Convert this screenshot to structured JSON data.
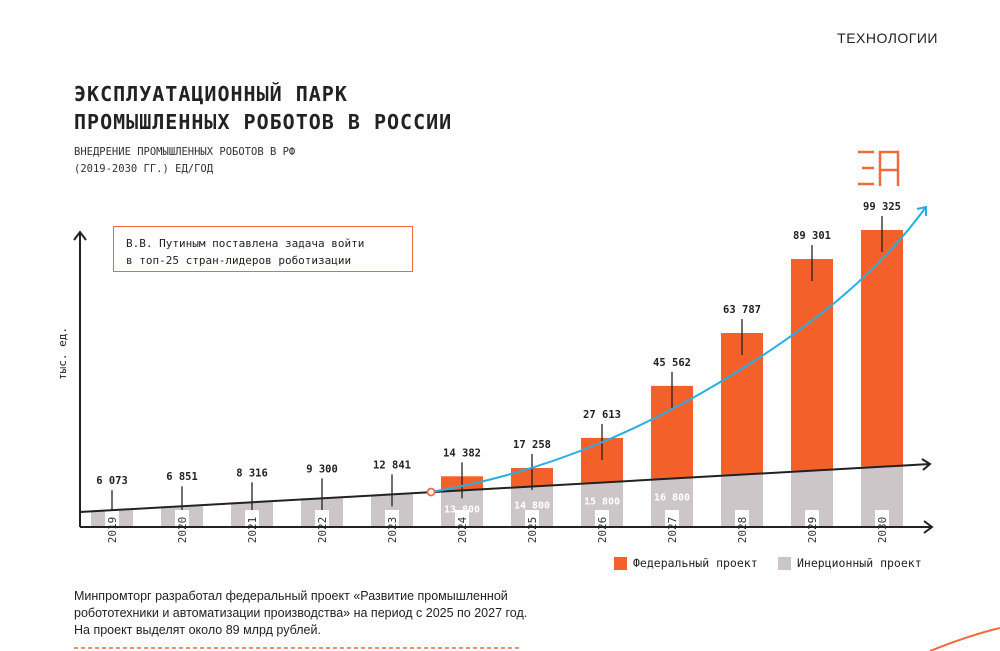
{
  "section_label": "ТЕХНОЛОГИИ",
  "title_lines": [
    "ЭКСПЛУАТАЦИОННЫЙ ПАРК",
    "ПРОМЫШЛЕННЫХ РОБОТОВ В РОССИИ"
  ],
  "subtitle_lines": [
    "ВНЕДРЕНИЕ ПРОМЫШЛЕННЫХ РОБОТОВ В РФ",
    "(2019-2030 ГГ.) ЕД/ГОД"
  ],
  "note_lines": [
    "В.В. Путиным поставлена задача войти",
    "в топ-25 стран-лидеров роботизации"
  ],
  "footer_text": "Минпромторг разработал федеральный проект «Развитие промышленной робототехники и автоматизации производства» на период с 2025 по 2027 год. На проект выделят около 89 млрд рублей.",
  "colors": {
    "federal": "#f4602a",
    "inertial": "#cdc6c8",
    "trend": "#29aee4",
    "accent": "#f26a3c"
  },
  "chart_data": {
    "type": "bar",
    "ylabel": "тыс. ед.",
    "categories": [
      "2019",
      "2020",
      "2021",
      "2022",
      "2023",
      "2024",
      "2025",
      "2026",
      "2027",
      "2028",
      "2029",
      "2030"
    ],
    "series": [
      {
        "name": "Федеральный проект",
        "values": [
          null,
          null,
          null,
          null,
          null,
          14382,
          17258,
          27613,
          45562,
          63787,
          89301,
          99325
        ]
      },
      {
        "name": "Инерционный проект",
        "values": [
          null,
          null,
          null,
          null,
          null,
          13800,
          14800,
          15800,
          16800,
          null,
          null,
          null
        ]
      }
    ],
    "value_labels": [
      "6 073",
      "6 851",
      "8 316",
      "9 300",
      "12 841",
      "14 382",
      "17 258",
      "27 613",
      "45 562",
      "63 787",
      "89 301",
      "99 325"
    ],
    "inertial_labels": [
      null,
      null,
      null,
      null,
      null,
      "13 800",
      "14 800",
      "15 800",
      "16 800",
      null,
      null,
      null
    ],
    "legend": [
      "Федеральный проект",
      "Инерционный проект"
    ],
    "legend_position": "bottom-right"
  }
}
